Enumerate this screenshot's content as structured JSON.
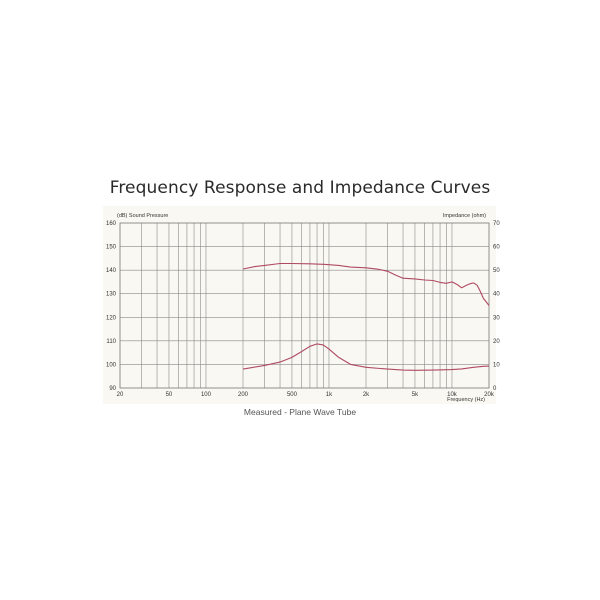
{
  "title": "Frequency Response and Impedance Curves",
  "caption": "Measured - Plane Wave Tube",
  "colors": {
    "background": "#f9f8f2",
    "grid": "#8a8a8a",
    "curve": "#b04a62"
  },
  "chart_data": {
    "type": "line",
    "xscale": "log",
    "xlim": [
      20,
      20000
    ],
    "xlabel": "Frequency (Hz)",
    "xticks": [
      20,
      50,
      100,
      200,
      500,
      1000,
      2000,
      5000,
      10000,
      20000
    ],
    "xtick_labels": [
      "20",
      "50",
      "100",
      "200",
      "500",
      "1k",
      "2k",
      "5k",
      "10k",
      "20k"
    ],
    "ylabel_left": "(dB) Sound Pressure",
    "ylim_left": [
      90,
      160
    ],
    "yticks_left": [
      90,
      100,
      110,
      120,
      130,
      140,
      150,
      160
    ],
    "ylabel_right": "Impedance (ohm)",
    "ylim_right": [
      0,
      70
    ],
    "yticks_right": [
      0,
      10,
      20,
      30,
      40,
      50,
      60,
      70
    ],
    "grid": true,
    "series": [
      {
        "axis": "left",
        "color": "#b04a62",
        "x": [
          200,
          250,
          300,
          400,
          500,
          700,
          900,
          1000,
          1200,
          1500,
          2000,
          2500,
          3000,
          3500,
          4000,
          5000,
          6000,
          7000,
          8000,
          9000,
          10000,
          11000,
          12000,
          13000,
          14000,
          15000,
          16000,
          17000,
          18000,
          19000,
          20000
        ],
        "y": [
          140.5,
          141.5,
          142,
          142.8,
          142.8,
          142.7,
          142.5,
          142.3,
          142,
          141.3,
          141,
          140.4,
          139.5,
          137.8,
          136.6,
          136.3,
          135.8,
          135.6,
          134.8,
          134.4,
          135,
          133.9,
          132.5,
          133.5,
          134.2,
          134.6,
          133.6,
          131,
          128,
          126.5,
          125
        ]
      },
      {
        "axis": "right",
        "color": "#b04a62",
        "x": [
          200,
          300,
          400,
          500,
          600,
          700,
          800,
          900,
          1000,
          1200,
          1500,
          2000,
          3000,
          4000,
          5000,
          7000,
          10000,
          12000,
          15000,
          18000,
          20000
        ],
        "y": [
          8,
          9.6,
          11,
          13,
          15.5,
          17.7,
          18.7,
          18.3,
          16.5,
          13,
          10,
          8.8,
          8,
          7.6,
          7.5,
          7.6,
          7.8,
          8.1,
          8.8,
          9.2,
          9.3
        ]
      }
    ]
  }
}
